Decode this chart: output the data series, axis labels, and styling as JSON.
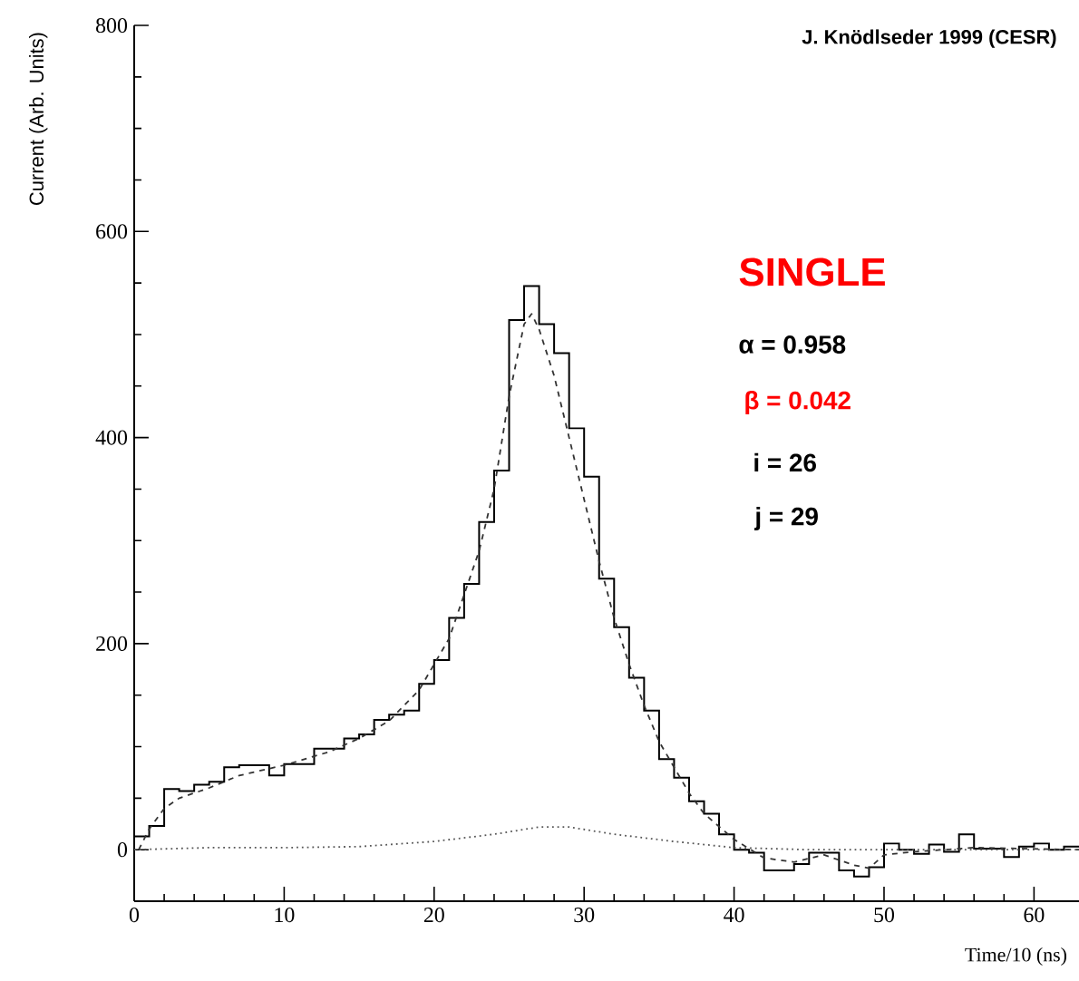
{
  "chart_data": {
    "type": "histogram",
    "xlabel": "Time/10 (ns)",
    "ylabel": "Current (Arb. Units)",
    "bins": [
      0,
      1,
      2,
      3,
      4,
      5,
      6,
      7,
      8,
      9,
      10,
      11,
      12,
      13,
      14,
      15,
      16,
      17,
      18,
      19,
      20,
      21,
      22,
      23,
      24,
      25,
      26,
      27,
      28,
      29,
      30,
      31,
      32,
      33,
      34,
      35,
      36,
      37,
      38,
      39,
      40,
      41,
      42,
      43,
      44,
      45,
      46,
      47,
      48,
      49,
      50,
      51,
      52,
      53,
      54,
      55,
      56,
      57,
      58,
      59,
      60,
      61,
      62,
      63
    ],
    "values": [
      13,
      23,
      59,
      57,
      63,
      66,
      80,
      82,
      82,
      72,
      83,
      83,
      98,
      98,
      108,
      112,
      126,
      131,
      135,
      161,
      184,
      225,
      258,
      318,
      368,
      514,
      547,
      510,
      482,
      409,
      362,
      263,
      216,
      167,
      135,
      88,
      70,
      47,
      35,
      15,
      0,
      -3,
      -20,
      -20,
      -14,
      -3,
      -3,
      -20,
      -26,
      -17,
      6,
      0,
      -4,
      5,
      -2,
      15,
      1,
      1,
      -7,
      3,
      6,
      0,
      3
    ],
    "color": "#000000",
    "series": [
      {
        "type": "line",
        "line_style": "dashed",
        "color": "#333333",
        "x": [
          0.3,
          1,
          2,
          3,
          5,
          7,
          10,
          13,
          15,
          17,
          19,
          21,
          23,
          24,
          25,
          26,
          26.5,
          27,
          28,
          29,
          30,
          31,
          32,
          33,
          34,
          35,
          36,
          37,
          38,
          40,
          42,
          44,
          46,
          48,
          49,
          50,
          52,
          56,
          63
        ],
        "values": [
          0,
          20,
          40,
          50,
          60,
          72,
          82,
          95,
          108,
          125,
          155,
          205,
          290,
          350,
          440,
          510,
          520,
          505,
          460,
          400,
          340,
          280,
          225,
          180,
          140,
          105,
          80,
          55,
          35,
          10,
          -8,
          -12,
          -5,
          -15,
          -18,
          -5,
          -2,
          2,
          0
        ]
      },
      {
        "type": "line",
        "line_style": "dotted",
        "color": "#555555",
        "x": [
          0,
          5,
          10,
          15,
          20,
          24,
          27,
          29,
          32,
          36,
          40,
          45,
          63
        ],
        "values": [
          0,
          2,
          2,
          3,
          8,
          15,
          22,
          22,
          15,
          8,
          2,
          0,
          0
        ]
      }
    ],
    "xlim": [
      0,
      63
    ],
    "ylim": [
      -50,
      800
    ],
    "xticks": [
      0,
      10,
      20,
      30,
      40,
      50,
      60
    ],
    "yticks": [
      0,
      200,
      400,
      600,
      800
    ],
    "annotations": [
      "J. Knödlseder 1999 (CESR)",
      "SINGLE",
      "α = 0.958",
      "β = 0.042",
      "i = 26",
      "j = 29"
    ]
  }
}
